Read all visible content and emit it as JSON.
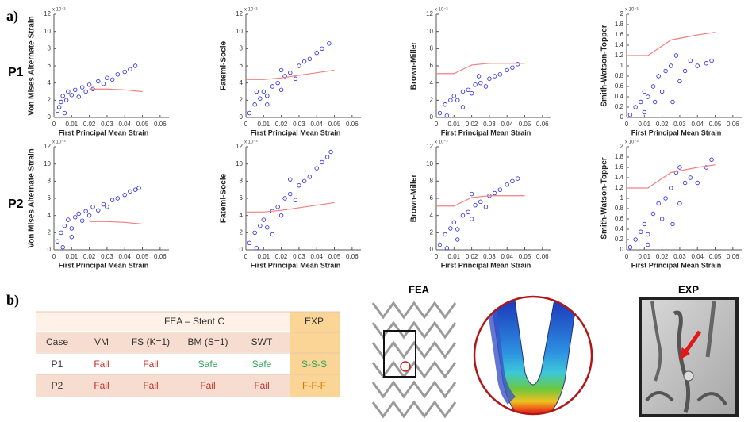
{
  "panel_labels": [
    "a)",
    "b)"
  ],
  "row_labels": [
    "P1",
    "P2"
  ],
  "chart_data": [
    {
      "type": "scatter",
      "xlabel": "First Principal Mean Strain",
      "ylabel": "Von Mises Alternate Strain",
      "y_multiplier": "x 10⁻³",
      "xlim": [
        0,
        0.065
      ],
      "ylim": [
        0,
        12
      ],
      "xticks": [
        0,
        0.01,
        0.02,
        0.03,
        0.04,
        0.05,
        0.06
      ],
      "yticks": [
        0,
        2,
        4,
        6,
        8,
        10,
        12
      ],
      "series": [
        {
          "style": "markers",
          "color": "#2323e6",
          "x": [
            0.002,
            0.004,
            0.005,
            0.007,
            0.008,
            0.01,
            0.012,
            0.014,
            0.016,
            0.018,
            0.02,
            0.022,
            0.025,
            0.028,
            0.03,
            0.033,
            0.036,
            0.04,
            0.043,
            0.046,
            0.003,
            0.006
          ],
          "y": [
            0.8,
            1.8,
            2.5,
            2.0,
            3.0,
            2.6,
            3.2,
            2.4,
            3.5,
            3.0,
            3.8,
            3.3,
            4.2,
            3.9,
            4.6,
            4.4,
            5.0,
            5.3,
            5.6,
            6.0,
            1.2,
            0.5
          ]
        },
        {
          "style": "line",
          "color": "#f08080",
          "x": [
            0.02,
            0.03,
            0.04,
            0.05
          ],
          "y": [
            3.3,
            3.3,
            3.2,
            3.0
          ]
        }
      ]
    },
    {
      "type": "scatter",
      "xlabel": "First Principal Mean Strain",
      "ylabel": "Fatemi-Socie",
      "y_multiplier": "x 10⁻³",
      "xlim": [
        0,
        0.065
      ],
      "ylim": [
        0,
        12
      ],
      "xticks": [
        0,
        0.01,
        0.02,
        0.03,
        0.04,
        0.05,
        0.06
      ],
      "yticks": [
        0,
        2,
        4,
        6,
        8,
        10,
        12
      ],
      "series": [
        {
          "style": "markers",
          "color": "#2323e6",
          "x": [
            0.002,
            0.005,
            0.008,
            0.01,
            0.012,
            0.015,
            0.018,
            0.02,
            0.022,
            0.025,
            0.028,
            0.03,
            0.033,
            0.036,
            0.04,
            0.043,
            0.047,
            0.012,
            0.02,
            0.006
          ],
          "y": [
            0.5,
            1.5,
            2.2,
            3.0,
            2.5,
            3.6,
            4.0,
            3.2,
            4.8,
            5.2,
            4.5,
            6.0,
            6.5,
            6.8,
            7.5,
            8.0,
            8.6,
            1.5,
            5.5,
            3.0
          ]
        },
        {
          "style": "line",
          "color": "#f08080",
          "x": [
            0,
            0.01,
            0.02,
            0.03,
            0.04,
            0.05
          ],
          "y": [
            4.4,
            4.4,
            4.6,
            4.9,
            5.2,
            5.5
          ]
        }
      ]
    },
    {
      "type": "scatter",
      "xlabel": "First Principal Mean Strain",
      "ylabel": "Brown-Miller",
      "y_multiplier": "x 10⁻³",
      "xlim": [
        0,
        0.065
      ],
      "ylim": [
        0,
        12
      ],
      "xticks": [
        0,
        0.01,
        0.02,
        0.03,
        0.04,
        0.05,
        0.06
      ],
      "yticks": [
        0,
        2,
        4,
        6,
        8,
        10,
        12
      ],
      "series": [
        {
          "style": "markers",
          "color": "#2323e6",
          "x": [
            0.002,
            0.005,
            0.008,
            0.01,
            0.012,
            0.015,
            0.018,
            0.02,
            0.022,
            0.025,
            0.028,
            0.03,
            0.033,
            0.036,
            0.04,
            0.043,
            0.046,
            0.015,
            0.024,
            0.006
          ],
          "y": [
            0.5,
            1.5,
            2.0,
            2.5,
            2.0,
            3.0,
            3.2,
            2.8,
            3.8,
            4.0,
            3.6,
            4.5,
            4.8,
            5.0,
            5.5,
            5.8,
            6.2,
            1.2,
            4.8,
            0.2
          ]
        },
        {
          "style": "line",
          "color": "#f08080",
          "x": [
            0,
            0.01,
            0.02,
            0.03,
            0.04,
            0.05
          ],
          "y": [
            5.1,
            5.1,
            6.1,
            6.3,
            6.3,
            6.3
          ]
        }
      ]
    },
    {
      "type": "scatter",
      "xlabel": "First Principal Mean Strain",
      "ylabel": "Smith-Watson-Topper",
      "y_multiplier": "x 10⁻³",
      "xlim": [
        0,
        0.065
      ],
      "ylim": [
        0,
        2
      ],
      "xticks": [
        0,
        0.01,
        0.02,
        0.03,
        0.04,
        0.05,
        0.06
      ],
      "yticks": [
        0,
        0.2,
        0.4,
        0.6,
        0.8,
        1,
        1.2,
        1.4,
        1.6,
        1.8,
        2
      ],
      "series": [
        {
          "style": "markers",
          "color": "#2323e6",
          "x": [
            0.002,
            0.005,
            0.008,
            0.01,
            0.012,
            0.015,
            0.018,
            0.02,
            0.022,
            0.025,
            0.028,
            0.03,
            0.033,
            0.036,
            0.04,
            0.045,
            0.048,
            0.026,
            0.01,
            0.016
          ],
          "y": [
            0.05,
            0.2,
            0.3,
            0.5,
            0.4,
            0.6,
            0.8,
            0.5,
            0.9,
            1.0,
            1.2,
            0.7,
            0.9,
            1.1,
            1.0,
            1.05,
            1.1,
            0.3,
            0.1,
            0.3
          ]
        },
        {
          "style": "line",
          "color": "#f08080",
          "x": [
            0,
            0.012,
            0.025,
            0.04,
            0.05
          ],
          "y": [
            1.2,
            1.2,
            1.5,
            1.6,
            1.65
          ]
        }
      ]
    },
    {
      "type": "scatter",
      "xlabel": "First Principal Mean Strain",
      "ylabel": "Von Mises Alternate Strain",
      "y_multiplier": "x 10⁻³",
      "xlim": [
        0,
        0.065
      ],
      "ylim": [
        0,
        12
      ],
      "xticks": [
        0,
        0.01,
        0.02,
        0.03,
        0.04,
        0.05,
        0.06
      ],
      "yticks": [
        0,
        2,
        4,
        6,
        8,
        10,
        12
      ],
      "series": [
        {
          "style": "markers",
          "color": "#2323e6",
          "x": [
            0.002,
            0.004,
            0.006,
            0.008,
            0.01,
            0.012,
            0.014,
            0.016,
            0.018,
            0.02,
            0.022,
            0.025,
            0.028,
            0.03,
            0.033,
            0.036,
            0.04,
            0.043,
            0.046,
            0.048,
            0.005,
            0.01
          ],
          "y": [
            1.0,
            2.0,
            2.8,
            3.5,
            2.5,
            3.8,
            4.2,
            3.4,
            4.5,
            4.0,
            5.0,
            4.6,
            5.3,
            5.0,
            5.8,
            6.0,
            6.4,
            6.8,
            7.0,
            7.2,
            0.3,
            1.5
          ]
        },
        {
          "style": "line",
          "color": "#f08080",
          "x": [
            0.02,
            0.03,
            0.04,
            0.05
          ],
          "y": [
            3.3,
            3.3,
            3.2,
            3.0
          ]
        }
      ]
    },
    {
      "type": "scatter",
      "xlabel": "First Principal Mean Strain",
      "ylabel": "Fatemi-Socie",
      "y_multiplier": "x 10⁻³",
      "xlim": [
        0,
        0.065
      ],
      "ylim": [
        0,
        12
      ],
      "xticks": [
        0,
        0.01,
        0.02,
        0.03,
        0.04,
        0.05,
        0.06
      ],
      "yticks": [
        0,
        2,
        4,
        6,
        8,
        10,
        12
      ],
      "series": [
        {
          "style": "markers",
          "color": "#2323e6",
          "x": [
            0.002,
            0.005,
            0.008,
            0.01,
            0.012,
            0.015,
            0.018,
            0.02,
            0.022,
            0.025,
            0.028,
            0.03,
            0.033,
            0.036,
            0.04,
            0.043,
            0.046,
            0.048,
            0.015,
            0.025,
            0.006
          ],
          "y": [
            0.8,
            2.0,
            2.8,
            3.5,
            2.6,
            4.5,
            5.0,
            4.0,
            6.0,
            6.5,
            5.8,
            7.5,
            8.0,
            8.5,
            9.5,
            10.2,
            10.8,
            11.4,
            1.8,
            8.2,
            0.2
          ]
        },
        {
          "style": "line",
          "color": "#f08080",
          "x": [
            0,
            0.01,
            0.02,
            0.03,
            0.04,
            0.05
          ],
          "y": [
            4.4,
            4.4,
            4.6,
            4.9,
            5.2,
            5.5
          ]
        }
      ]
    },
    {
      "type": "scatter",
      "xlabel": "First Principal Mean Strain",
      "ylabel": "Brown-Miller",
      "y_multiplier": "x 10⁻³",
      "xlim": [
        0,
        0.065
      ],
      "ylim": [
        0,
        12
      ],
      "xticks": [
        0,
        0.01,
        0.02,
        0.03,
        0.04,
        0.05,
        0.06
      ],
      "yticks": [
        0,
        2,
        4,
        6,
        8,
        10,
        12
      ],
      "series": [
        {
          "style": "markers",
          "color": "#2323e6",
          "x": [
            0.002,
            0.005,
            0.008,
            0.01,
            0.012,
            0.015,
            0.018,
            0.02,
            0.022,
            0.025,
            0.028,
            0.03,
            0.033,
            0.036,
            0.04,
            0.043,
            0.046,
            0.02,
            0.012,
            0.006
          ],
          "y": [
            0.6,
            1.8,
            2.5,
            3.2,
            2.4,
            4.0,
            4.4,
            3.6,
            5.2,
            5.6,
            5.0,
            6.3,
            6.6,
            7.0,
            7.6,
            8.0,
            8.3,
            6.5,
            1.2,
            0.2
          ]
        },
        {
          "style": "line",
          "color": "#f08080",
          "x": [
            0,
            0.01,
            0.02,
            0.03,
            0.04,
            0.05
          ],
          "y": [
            5.1,
            5.1,
            6.1,
            6.3,
            6.3,
            6.3
          ]
        }
      ]
    },
    {
      "type": "scatter",
      "xlabel": "First Principal Mean Strain",
      "ylabel": "Smith-Watson-Topper",
      "y_multiplier": "x 10⁻³",
      "xlim": [
        0,
        0.065
      ],
      "ylim": [
        0,
        2
      ],
      "xticks": [
        0,
        0.01,
        0.02,
        0.03,
        0.04,
        0.05,
        0.06
      ],
      "yticks": [
        0,
        0.2,
        0.4,
        0.6,
        0.8,
        1,
        1.2,
        1.4,
        1.6,
        1.8,
        2
      ],
      "series": [
        {
          "style": "markers",
          "color": "#2323e6",
          "x": [
            0.002,
            0.005,
            0.008,
            0.01,
            0.012,
            0.015,
            0.018,
            0.02,
            0.022,
            0.025,
            0.028,
            0.03,
            0.03,
            0.033,
            0.036,
            0.04,
            0.045,
            0.048,
            0.026,
            0.012
          ],
          "y": [
            0.05,
            0.2,
            0.35,
            0.5,
            0.3,
            0.7,
            0.9,
            0.6,
            1.0,
            1.2,
            1.5,
            1.6,
            0.9,
            1.3,
            1.4,
            1.3,
            1.6,
            1.75,
            0.5,
            0.1
          ]
        },
        {
          "style": "line",
          "color": "#f08080",
          "x": [
            0,
            0.012,
            0.025,
            0.04,
            0.05
          ],
          "y": [
            1.2,
            1.2,
            1.5,
            1.6,
            1.65
          ]
        }
      ]
    }
  ],
  "table": {
    "group_header": "FEA – Stent C",
    "exp_header": "EXP",
    "header": [
      "Case",
      "VM",
      "FS (K=1)",
      "BM (S=1)",
      "SWT"
    ],
    "rows": [
      [
        "P1",
        "Fail",
        "Fail",
        "Safe",
        "Safe",
        "S-S-S"
      ],
      [
        "P2",
        "Fail",
        "Fail",
        "Fail",
        "Fail",
        "F-F-F"
      ]
    ]
  },
  "images": {
    "fea_label": "FEA",
    "exp_label": "EXP"
  }
}
